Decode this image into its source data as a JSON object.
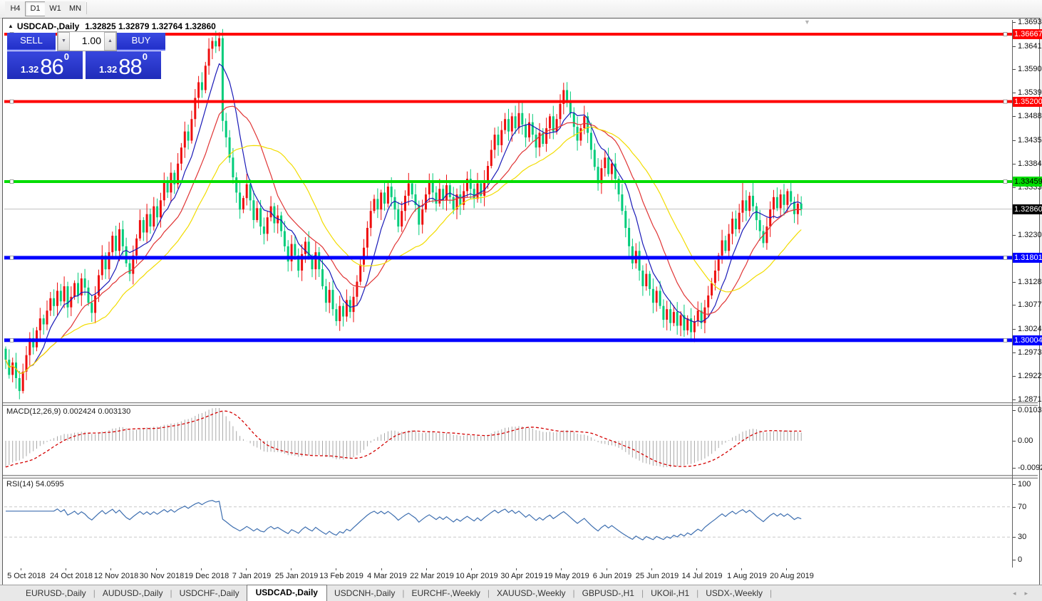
{
  "toolbar": {
    "timeframes": [
      {
        "label": "H4",
        "active": false
      },
      {
        "label": "D1",
        "active": true
      },
      {
        "label": "W1",
        "active": false
      },
      {
        "label": "MN",
        "active": false
      }
    ]
  },
  "chart": {
    "collapse_arrow": "▲",
    "title": "USDCAD-,Daily",
    "ohlc": "1.32825 1.32879 1.32764 1.32860",
    "shift_marker": "▼"
  },
  "trade_panel": {
    "sell_label": "SELL",
    "buy_label": "BUY",
    "volume": "1.00",
    "spinner_down": "▼",
    "spinner_up": "▲",
    "price_prefix": "1.32",
    "sell_big": "86",
    "buy_big": "88",
    "pip_sup": "0"
  },
  "price_axis": {
    "ticks": [
      {
        "label": "1.36935",
        "price": 1.36935
      },
      {
        "label": "1.36410",
        "price": 1.3641
      },
      {
        "label": "1.35900",
        "price": 1.359
      },
      {
        "label": "1.35390",
        "price": 1.3539
      },
      {
        "label": "1.34880",
        "price": 1.3488
      },
      {
        "label": "1.34355",
        "price": 1.34355
      },
      {
        "label": "1.33845",
        "price": 1.33845
      },
      {
        "label": "1.33335",
        "price": 1.33335
      },
      {
        "label": "1.32300",
        "price": 1.323
      },
      {
        "label": "1.31280",
        "price": 1.3128
      },
      {
        "label": "1.30770",
        "price": 1.3077
      },
      {
        "label": "1.30245",
        "price": 1.30245
      },
      {
        "label": "1.29735",
        "price": 1.29735
      },
      {
        "label": "1.29225",
        "price": 1.29225
      },
      {
        "label": "1.28715",
        "price": 1.28715
      }
    ],
    "badges": [
      {
        "label": "1.36667",
        "price": 1.36667,
        "bg": "#ff0000",
        "fg": "#ffffff"
      },
      {
        "label": "1.35200",
        "price": 1.352,
        "bg": "#ff0000",
        "fg": "#ffffff"
      },
      {
        "label": "1.33459",
        "price": 1.33459,
        "bg": "#00dd00",
        "fg": "#000000"
      },
      {
        "label": "1.32860",
        "price": 1.3286,
        "bg": "#000000",
        "fg": "#ffffff"
      },
      {
        "label": "1.31801",
        "price": 1.31801,
        "bg": "#0000ff",
        "fg": "#ffffff"
      },
      {
        "label": "1.30004",
        "price": 1.30004,
        "bg": "#0000ff",
        "fg": "#ffffff"
      }
    ]
  },
  "macd_panel": {
    "label": "MACD(12,26,9) 0.002424 0.003130",
    "ticks": [
      {
        "label": "0.010311",
        "v": 0.010311
      },
      {
        "label": "0.00",
        "v": 0.0
      },
      {
        "label": "-0.009203",
        "v": -0.009203
      }
    ]
  },
  "rsi_panel": {
    "label": "RSI(14) 54.0595",
    "ticks": [
      {
        "label": "100",
        "v": 100
      },
      {
        "label": "70",
        "v": 70
      },
      {
        "label": "30",
        "v": 30
      },
      {
        "label": "0",
        "v": 0
      }
    ],
    "levels": [
      70,
      30
    ]
  },
  "date_axis": [
    "5 Oct 2018",
    "24 Oct 2018",
    "12 Nov 2018",
    "30 Nov 2018",
    "19 Dec 2018",
    "7 Jan 2019",
    "25 Jan 2019",
    "13 Feb 2019",
    "4 Mar 2019",
    "22 Mar 2019",
    "10 Apr 2019",
    "30 Apr 2019",
    "19 May 2019",
    "6 Jun 2019",
    "25 Jun 2019",
    "14 Jul 2019",
    "1 Aug 2019",
    "20 Aug 2019"
  ],
  "tabs": {
    "items": [
      {
        "label": "EURUSD-,Daily",
        "active": false
      },
      {
        "label": "AUDUSD-,Daily",
        "active": false
      },
      {
        "label": "USDCHF-,Daily",
        "active": false
      },
      {
        "label": "USDCAD-,Daily",
        "active": true
      },
      {
        "label": "USDCNH-,Daily",
        "active": false
      },
      {
        "label": "EURCHF-,Weekly",
        "active": false
      },
      {
        "label": "XAUUSD-,Weekly",
        "active": false
      },
      {
        "label": "GBPUSD-,H1",
        "active": false
      },
      {
        "label": "UKOil-,H1",
        "active": false
      },
      {
        "label": "USDX-,Weekly",
        "active": false
      }
    ],
    "scroll_left": "◂",
    "scroll_right": "▸"
  },
  "chart_data": {
    "type": "candlestick",
    "symbol": "USDCAD",
    "timeframe": "Daily",
    "up_color": "#ee0f0f",
    "down_color": "#00cc7a",
    "price_range": {
      "top": 1.36977,
      "bottom": 1.28653
    },
    "current_price": 1.3286,
    "hlines": [
      {
        "price": 1.36667,
        "color": "#ff0000",
        "w": 4
      },
      {
        "price": 1.352,
        "color": "#ff0000",
        "w": 4
      },
      {
        "price": 1.33459,
        "color": "#00dd00",
        "w": 4
      },
      {
        "price": 1.31801,
        "color": "#0000ff",
        "w": 5
      },
      {
        "price": 1.30004,
        "color": "#0000ff",
        "w": 5
      }
    ],
    "ma": [
      {
        "period": 8,
        "color": "#1a1ab8"
      },
      {
        "period": 17,
        "color": "#e03535"
      },
      {
        "period": 30,
        "color": "#f2dc00"
      }
    ],
    "first_open": 1.2982,
    "closes": [
      1.2958,
      1.2925,
      1.2952,
      1.2918,
      1.289,
      1.2932,
      1.2968,
      1.3005,
      1.2985,
      1.3022,
      1.3048,
      1.3035,
      1.3065,
      1.3092,
      1.3075,
      1.3108,
      1.3085,
      1.3118,
      1.3072,
      1.3095,
      1.3125,
      1.3098,
      1.3135,
      1.3115,
      1.3082,
      1.306,
      1.3098,
      1.3142,
      1.3185,
      1.3155,
      1.3192,
      1.3228,
      1.3195,
      1.3242,
      1.3205,
      1.3168,
      1.3145,
      1.3185,
      1.3222,
      1.3262,
      1.3235,
      1.3275,
      1.3248,
      1.3292,
      1.3268,
      1.3305,
      1.3345,
      1.3322,
      1.3365,
      1.334,
      1.3385,
      1.342,
      1.3455,
      1.3435,
      1.3482,
      1.3528,
      1.3562,
      1.3545,
      1.3598,
      1.3635,
      1.3652,
      1.364,
      1.3658,
      1.3478,
      1.3442,
      1.3398,
      1.3355,
      1.3322,
      1.3285,
      1.331,
      1.334,
      1.3305,
      1.3262,
      1.3288,
      1.3248,
      1.3232,
      1.3268,
      1.3292,
      1.3255,
      1.3272,
      1.3238,
      1.3205,
      1.3172,
      1.321,
      1.3185,
      1.3152,
      1.3188,
      1.3215,
      1.3182,
      1.3155,
      1.3192,
      1.3155,
      1.3118,
      1.3082,
      1.311,
      1.3068,
      1.3042,
      1.3075,
      1.3052,
      1.3088,
      1.3062,
      1.3095,
      1.3128,
      1.3165,
      1.3202,
      1.3245,
      1.3282,
      1.3308,
      1.3285,
      1.3322,
      1.3298,
      1.3335,
      1.3312,
      1.3285,
      1.3248,
      1.3282,
      1.3315,
      1.3342,
      1.3318,
      1.3295,
      1.3252,
      1.3285,
      1.3318,
      1.3345,
      1.3322,
      1.3298,
      1.333,
      1.3305,
      1.3338,
      1.3312,
      1.3285,
      1.3318,
      1.3295,
      1.3325,
      1.3352,
      1.333,
      1.3308,
      1.3342,
      1.3315,
      1.3348,
      1.338,
      1.3415,
      1.3448,
      1.3425,
      1.3458,
      1.3482,
      1.3455,
      1.3488,
      1.3462,
      1.3495,
      1.347,
      1.3442,
      1.3475,
      1.3448,
      1.342,
      1.3452,
      1.3428,
      1.3462,
      1.3488,
      1.3455,
      1.3482,
      1.3515,
      1.3545,
      1.3522,
      1.3495,
      1.3465,
      1.3435,
      1.3462,
      1.3488,
      1.3452,
      1.3415,
      1.3378,
      1.3342,
      1.3375,
      1.3398,
      1.3362,
      1.3385,
      1.3352,
      1.3318,
      1.3282,
      1.3245,
      1.3205,
      1.3168,
      1.3195,
      1.3152,
      1.3118,
      1.3145,
      1.3112,
      1.3082,
      1.3108,
      1.3075,
      1.3045,
      1.3068,
      1.3038,
      1.3062,
      1.3032,
      1.3055,
      1.3022,
      1.3048,
      1.3018,
      1.3042,
      1.3065,
      1.3038,
      1.3072,
      1.3098,
      1.3125,
      1.3152,
      1.3185,
      1.3218,
      1.3195,
      1.3232,
      1.3265,
      1.3242,
      1.3278,
      1.3305,
      1.3282,
      1.3315,
      1.3292,
      1.3262,
      1.3238,
      1.3212,
      1.3248,
      1.3285,
      1.3312,
      1.3288,
      1.3318,
      1.3295,
      1.3325,
      1.3302,
      1.3275,
      1.3298,
      1.3286
    ],
    "spike_highs": {
      "60": 1.366,
      "62": 1.3664,
      "149": 1.3521,
      "162": 1.356,
      "214": 1.3345,
      "217": 1.3345
    },
    "spike_lows": {
      "4": 1.2883,
      "63": 1.3455,
      "96": 1.3032,
      "199": 1.3016
    },
    "macd": {
      "hist_color": "#a8a8a8",
      "signal_color": "#d40000",
      "scale_top": 0.010311,
      "scale_bottom": -0.009203
    },
    "rsi": {
      "color": "#3e6fb0",
      "period": 14
    }
  }
}
